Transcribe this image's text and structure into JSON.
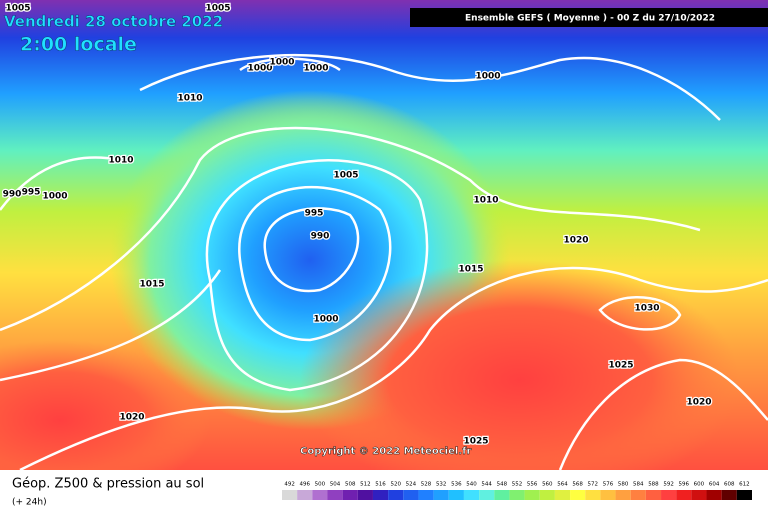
{
  "header": {
    "title": "Vendredi 28 octobre 2022",
    "time": "2:00 locale",
    "model": "Ensemble GEFS ( Moyenne ) - 00 Z du 27/10/2022"
  },
  "copyright": "Copyright © 2022 Meteociel.fr",
  "isobar_labels": [
    "1005",
    "1005",
    "1000",
    "1000",
    "1000",
    "1000",
    "1010",
    "1010",
    "990",
    "995",
    "1000",
    "1005",
    "995",
    "990",
    "1010",
    "1020",
    "1015",
    "1015",
    "1030",
    "1000",
    "1025",
    "1020",
    "1020",
    "1025"
  ],
  "legend": {
    "title": "Géop. Z500 & pression au sol",
    "subtitle": "(+ 24h)",
    "labels": [
      "492",
      "496",
      "500",
      "504",
      "508",
      "512",
      "516",
      "520",
      "524",
      "528",
      "532",
      "536",
      "540",
      "544",
      "548",
      "552",
      "556",
      "560",
      "564",
      "568",
      "572",
      "576",
      "580",
      "584",
      "588",
      "592",
      "596",
      "600",
      "604",
      "608",
      "612"
    ],
    "colors": [
      "#d9d9d9",
      "#c8a8d8",
      "#b070d0",
      "#9040c0",
      "#7020b0",
      "#5010a0",
      "#3020c0",
      "#2040e0",
      "#2060f0",
      "#2080ff",
      "#20a0ff",
      "#20c0ff",
      "#40e0ff",
      "#60f0e0",
      "#60f0a0",
      "#80f070",
      "#a0f050",
      "#c0f040",
      "#e0f040",
      "#ffff40",
      "#ffe040",
      "#ffc040",
      "#ffa040",
      "#ff8040",
      "#ff6040",
      "#ff4040",
      "#f02020",
      "#d01010",
      "#a00000",
      "#600000",
      "#000000"
    ]
  }
}
